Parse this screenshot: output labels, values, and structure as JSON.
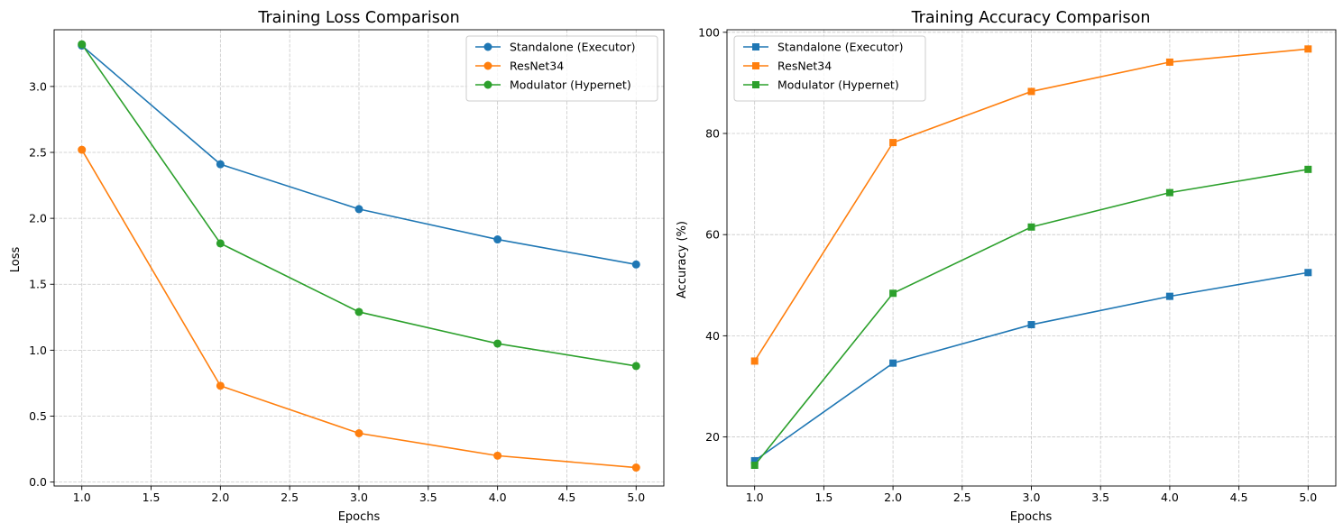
{
  "chart_data": [
    {
      "id": "loss",
      "type": "line",
      "title": "Training Loss Comparison",
      "xlabel": "Epochs",
      "ylabel": "Loss",
      "x": [
        1.0,
        2.0,
        3.0,
        4.0,
        5.0
      ],
      "xlim": [
        0.8,
        5.2
      ],
      "ylim": [
        -0.03,
        3.43
      ],
      "xticks": [
        1.0,
        1.5,
        2.0,
        2.5,
        3.0,
        3.5,
        4.0,
        4.5,
        5.0
      ],
      "xtick_labels": [
        "1.0",
        "1.5",
        "2.0",
        "2.5",
        "3.0",
        "3.5",
        "4.0",
        "4.5",
        "5.0"
      ],
      "yticks": [
        0.0,
        0.5,
        1.0,
        1.5,
        2.0,
        2.5,
        3.0
      ],
      "ytick_labels": [
        "0.0",
        "0.5",
        "1.0",
        "1.5",
        "2.0",
        "2.5",
        "3.0"
      ],
      "grid": true,
      "marker": "circle",
      "legend_position": "top-right",
      "series": [
        {
          "name": "Standalone (Executor)",
          "color": "#1f77b4",
          "values": [
            3.31,
            2.41,
            2.07,
            1.84,
            1.65
          ]
        },
        {
          "name": "ResNet34",
          "color": "#ff7f0e",
          "values": [
            2.52,
            0.73,
            0.37,
            0.2,
            0.11
          ]
        },
        {
          "name": "Modulator (Hypernet)",
          "color": "#2ca02c",
          "values": [
            3.32,
            1.81,
            1.29,
            1.05,
            0.88
          ]
        }
      ]
    },
    {
      "id": "accuracy",
      "type": "line",
      "title": "Training Accuracy Comparison",
      "xlabel": "Epochs",
      "ylabel": "Accuracy (%)",
      "x": [
        1.0,
        2.0,
        3.0,
        4.0,
        5.0
      ],
      "xlim": [
        0.8,
        5.2
      ],
      "ylim": [
        10.3,
        100.5
      ],
      "xticks": [
        1.0,
        1.5,
        2.0,
        2.5,
        3.0,
        3.5,
        4.0,
        4.5,
        5.0
      ],
      "xtick_labels": [
        "1.0",
        "1.5",
        "2.0",
        "2.5",
        "3.0",
        "3.5",
        "4.0",
        "4.5",
        "5.0"
      ],
      "yticks": [
        20,
        40,
        60,
        80,
        100
      ],
      "ytick_labels": [
        "20",
        "40",
        "60",
        "80",
        "100"
      ],
      "grid": true,
      "marker": "square",
      "legend_position": "top-left",
      "series": [
        {
          "name": "Standalone (Executor)",
          "color": "#1f77b4",
          "values": [
            15.3,
            34.6,
            42.2,
            47.8,
            52.5
          ]
        },
        {
          "name": "ResNet34",
          "color": "#ff7f0e",
          "values": [
            35.0,
            78.2,
            88.3,
            94.1,
            96.7
          ]
        },
        {
          "name": "Modulator (Hypernet)",
          "color": "#2ca02c",
          "values": [
            14.4,
            48.4,
            61.5,
            68.3,
            72.9
          ]
        }
      ]
    }
  ]
}
